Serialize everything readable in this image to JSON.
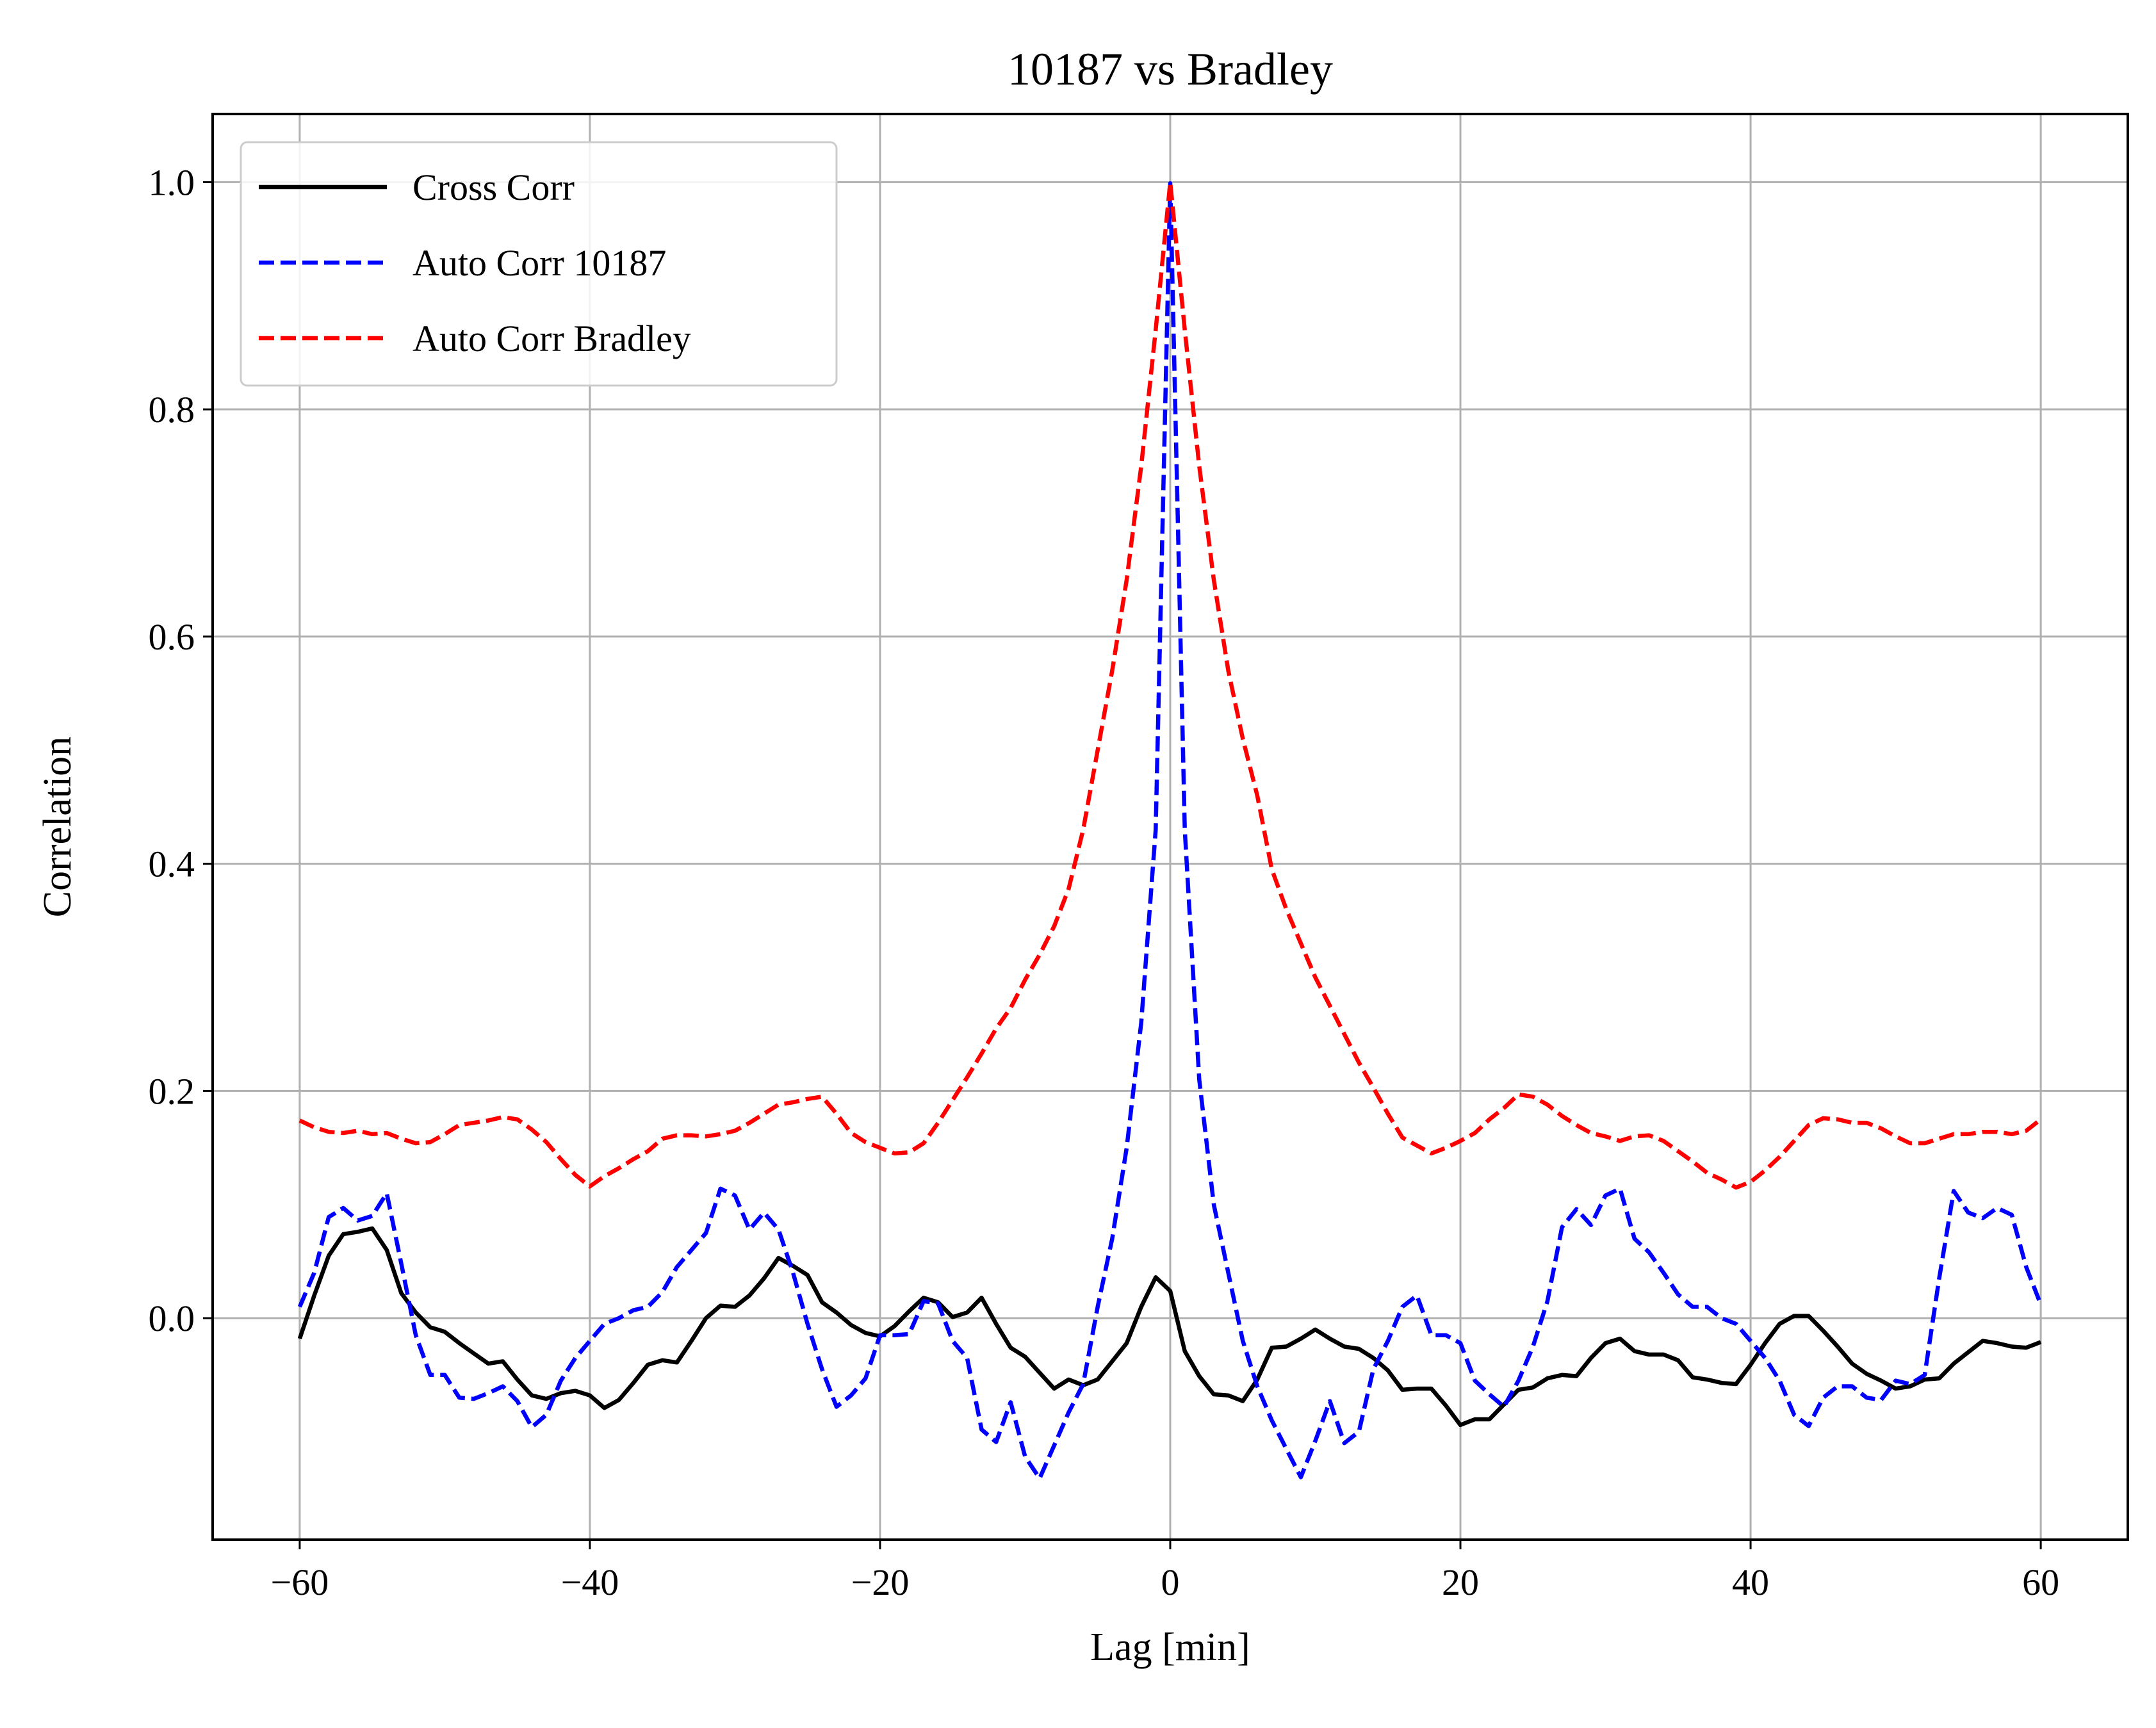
{
  "chart_data": {
    "type": "line",
    "title": "10187 vs Bradley",
    "xlabel": "Lag [min]",
    "ylabel": "Correlation",
    "xlim": [
      -66,
      66
    ],
    "ylim": [
      -0.195,
      1.06
    ],
    "xticks": [
      -60,
      -40,
      -20,
      0,
      20,
      40,
      60
    ],
    "yticks": [
      0.0,
      0.2,
      0.4,
      0.6,
      0.8,
      1.0
    ],
    "xtick_labels": [
      "−60",
      "−40",
      "−20",
      "0",
      "20",
      "40",
      "60"
    ],
    "ytick_labels": [
      "0.0",
      "0.2",
      "0.4",
      "0.6",
      "0.8",
      "1.0"
    ],
    "grid": true,
    "legend_position": "top-left",
    "x": [
      -60,
      -59,
      -58,
      -57,
      -56,
      -55,
      -54,
      -53,
      -52,
      -51,
      -50,
      -49,
      -48,
      -47,
      -46,
      -45,
      -44,
      -43,
      -42,
      -41,
      -40,
      -39,
      -38,
      -37,
      -36,
      -35,
      -34,
      -33,
      -32,
      -31,
      -30,
      -29,
      -28,
      -27,
      -26,
      -25,
      -24,
      -23,
      -22,
      -21,
      -20,
      -19,
      -18,
      -17,
      -16,
      -15,
      -14,
      -13,
      -12,
      -11,
      -10,
      -9,
      -8,
      -7,
      -6,
      -5,
      -4,
      -3,
      -2,
      -1,
      0,
      1,
      2,
      3,
      4,
      5,
      6,
      7,
      8,
      9,
      10,
      11,
      12,
      13,
      14,
      15,
      16,
      17,
      18,
      19,
      20,
      21,
      22,
      23,
      24,
      25,
      26,
      27,
      28,
      29,
      30,
      31,
      32,
      33,
      34,
      35,
      36,
      37,
      38,
      39,
      40,
      41,
      42,
      43,
      44,
      45,
      46,
      47,
      48,
      49,
      50,
      51,
      52,
      53,
      54,
      55,
      56,
      57,
      58,
      59,
      60
    ],
    "series": [
      {
        "name": "Cross Corr",
        "color": "#000000",
        "dash": "solid",
        "values": [
          -0.018,
          0.02,
          0.055,
          0.074,
          0.076,
          0.079,
          0.06,
          0.022,
          0.005,
          -0.008,
          -0.012,
          -0.022,
          -0.031,
          -0.04,
          -0.038,
          -0.054,
          -0.068,
          -0.071,
          -0.066,
          -0.064,
          -0.068,
          -0.079,
          -0.072,
          -0.057,
          -0.041,
          -0.037,
          -0.039,
          -0.02,
          0.0,
          0.011,
          0.01,
          0.02,
          0.035,
          0.053,
          0.046,
          0.038,
          0.014,
          0.005,
          -0.006,
          -0.013,
          -0.016,
          -0.007,
          0.006,
          0.018,
          0.014,
          0.001,
          0.005,
          0.018,
          -0.005,
          -0.026,
          -0.034,
          -0.048,
          -0.062,
          -0.054,
          -0.059,
          -0.054,
          -0.038,
          -0.022,
          0.01,
          0.036,
          0.024,
          -0.029,
          -0.051,
          -0.067,
          -0.068,
          -0.073,
          -0.054,
          -0.026,
          -0.025,
          -0.018,
          -0.01,
          -0.018,
          -0.025,
          -0.027,
          -0.035,
          -0.046,
          -0.063,
          -0.062,
          -0.062,
          -0.077,
          -0.094,
          -0.089,
          -0.089,
          -0.076,
          -0.063,
          -0.061,
          -0.053,
          -0.05,
          -0.051,
          -0.035,
          -0.022,
          -0.018,
          -0.029,
          -0.032,
          -0.032,
          -0.037,
          -0.052,
          -0.054,
          -0.057,
          -0.058,
          -0.041,
          -0.022,
          -0.005,
          0.002,
          0.002,
          -0.011,
          -0.025,
          -0.04,
          -0.049,
          -0.055,
          -0.062,
          -0.06,
          -0.054,
          -0.053,
          -0.04,
          -0.03,
          -0.02,
          -0.022,
          -0.025,
          -0.026,
          -0.021
        ]
      },
      {
        "name": "Auto Corr 10187",
        "color": "#0000ff",
        "dash": "dashed",
        "values": [
          0.01,
          0.04,
          0.089,
          0.097,
          0.086,
          0.09,
          0.11,
          0.048,
          -0.015,
          -0.05,
          -0.05,
          -0.07,
          -0.071,
          -0.066,
          -0.06,
          -0.073,
          -0.096,
          -0.085,
          -0.055,
          -0.035,
          -0.02,
          -0.005,
          0.0,
          0.007,
          0.01,
          0.023,
          0.045,
          0.06,
          0.075,
          0.114,
          0.108,
          0.078,
          0.093,
          0.078,
          0.04,
          -0.005,
          -0.045,
          -0.078,
          -0.068,
          -0.053,
          -0.015,
          -0.015,
          -0.014,
          0.015,
          0.013,
          -0.02,
          -0.035,
          -0.098,
          -0.109,
          -0.074,
          -0.122,
          -0.141,
          -0.112,
          -0.083,
          -0.058,
          0.01,
          0.07,
          0.15,
          0.26,
          0.43,
          0.999,
          0.43,
          0.21,
          0.1,
          0.04,
          -0.02,
          -0.06,
          -0.09,
          -0.115,
          -0.14,
          -0.108,
          -0.073,
          -0.11,
          -0.1,
          -0.045,
          -0.02,
          0.01,
          0.02,
          -0.015,
          -0.015,
          -0.022,
          -0.055,
          -0.067,
          -0.078,
          -0.055,
          -0.025,
          0.015,
          0.08,
          0.096,
          0.082,
          0.108,
          0.114,
          0.07,
          0.058,
          0.04,
          0.021,
          0.01,
          0.01,
          0.0,
          -0.005,
          -0.02,
          -0.035,
          -0.055,
          -0.085,
          -0.095,
          -0.07,
          -0.06,
          -0.06,
          -0.07,
          -0.072,
          -0.055,
          -0.058,
          -0.05,
          0.035,
          0.112,
          0.093,
          0.088,
          0.097,
          0.091,
          0.045,
          0.012
        ]
      },
      {
        "name": "Auto Corr Bradley",
        "color": "#ff0000",
        "dash": "dashed",
        "values": [
          0.174,
          0.168,
          0.164,
          0.163,
          0.165,
          0.162,
          0.163,
          0.158,
          0.154,
          0.155,
          0.162,
          0.17,
          0.172,
          0.174,
          0.177,
          0.175,
          0.166,
          0.155,
          0.14,
          0.126,
          0.116,
          0.125,
          0.132,
          0.14,
          0.147,
          0.158,
          0.161,
          0.161,
          0.16,
          0.162,
          0.165,
          0.172,
          0.18,
          0.188,
          0.19,
          0.193,
          0.195,
          0.18,
          0.163,
          0.155,
          0.15,
          0.145,
          0.146,
          0.154,
          0.172,
          0.192,
          0.212,
          0.233,
          0.255,
          0.273,
          0.298,
          0.32,
          0.345,
          0.378,
          0.43,
          0.5,
          0.57,
          0.65,
          0.75,
          0.87,
          1.0,
          0.87,
          0.75,
          0.65,
          0.57,
          0.51,
          0.46,
          0.395,
          0.36,
          0.33,
          0.3,
          0.275,
          0.25,
          0.225,
          0.203,
          0.18,
          0.159,
          0.152,
          0.145,
          0.15,
          0.156,
          0.163,
          0.175,
          0.185,
          0.197,
          0.195,
          0.188,
          0.178,
          0.17,
          0.163,
          0.16,
          0.156,
          0.16,
          0.161,
          0.156,
          0.147,
          0.138,
          0.128,
          0.122,
          0.115,
          0.12,
          0.13,
          0.142,
          0.156,
          0.17,
          0.176,
          0.175,
          0.172,
          0.172,
          0.167,
          0.16,
          0.154,
          0.154,
          0.158,
          0.162,
          0.162,
          0.164,
          0.164,
          0.162,
          0.165,
          0.175
        ]
      }
    ]
  }
}
